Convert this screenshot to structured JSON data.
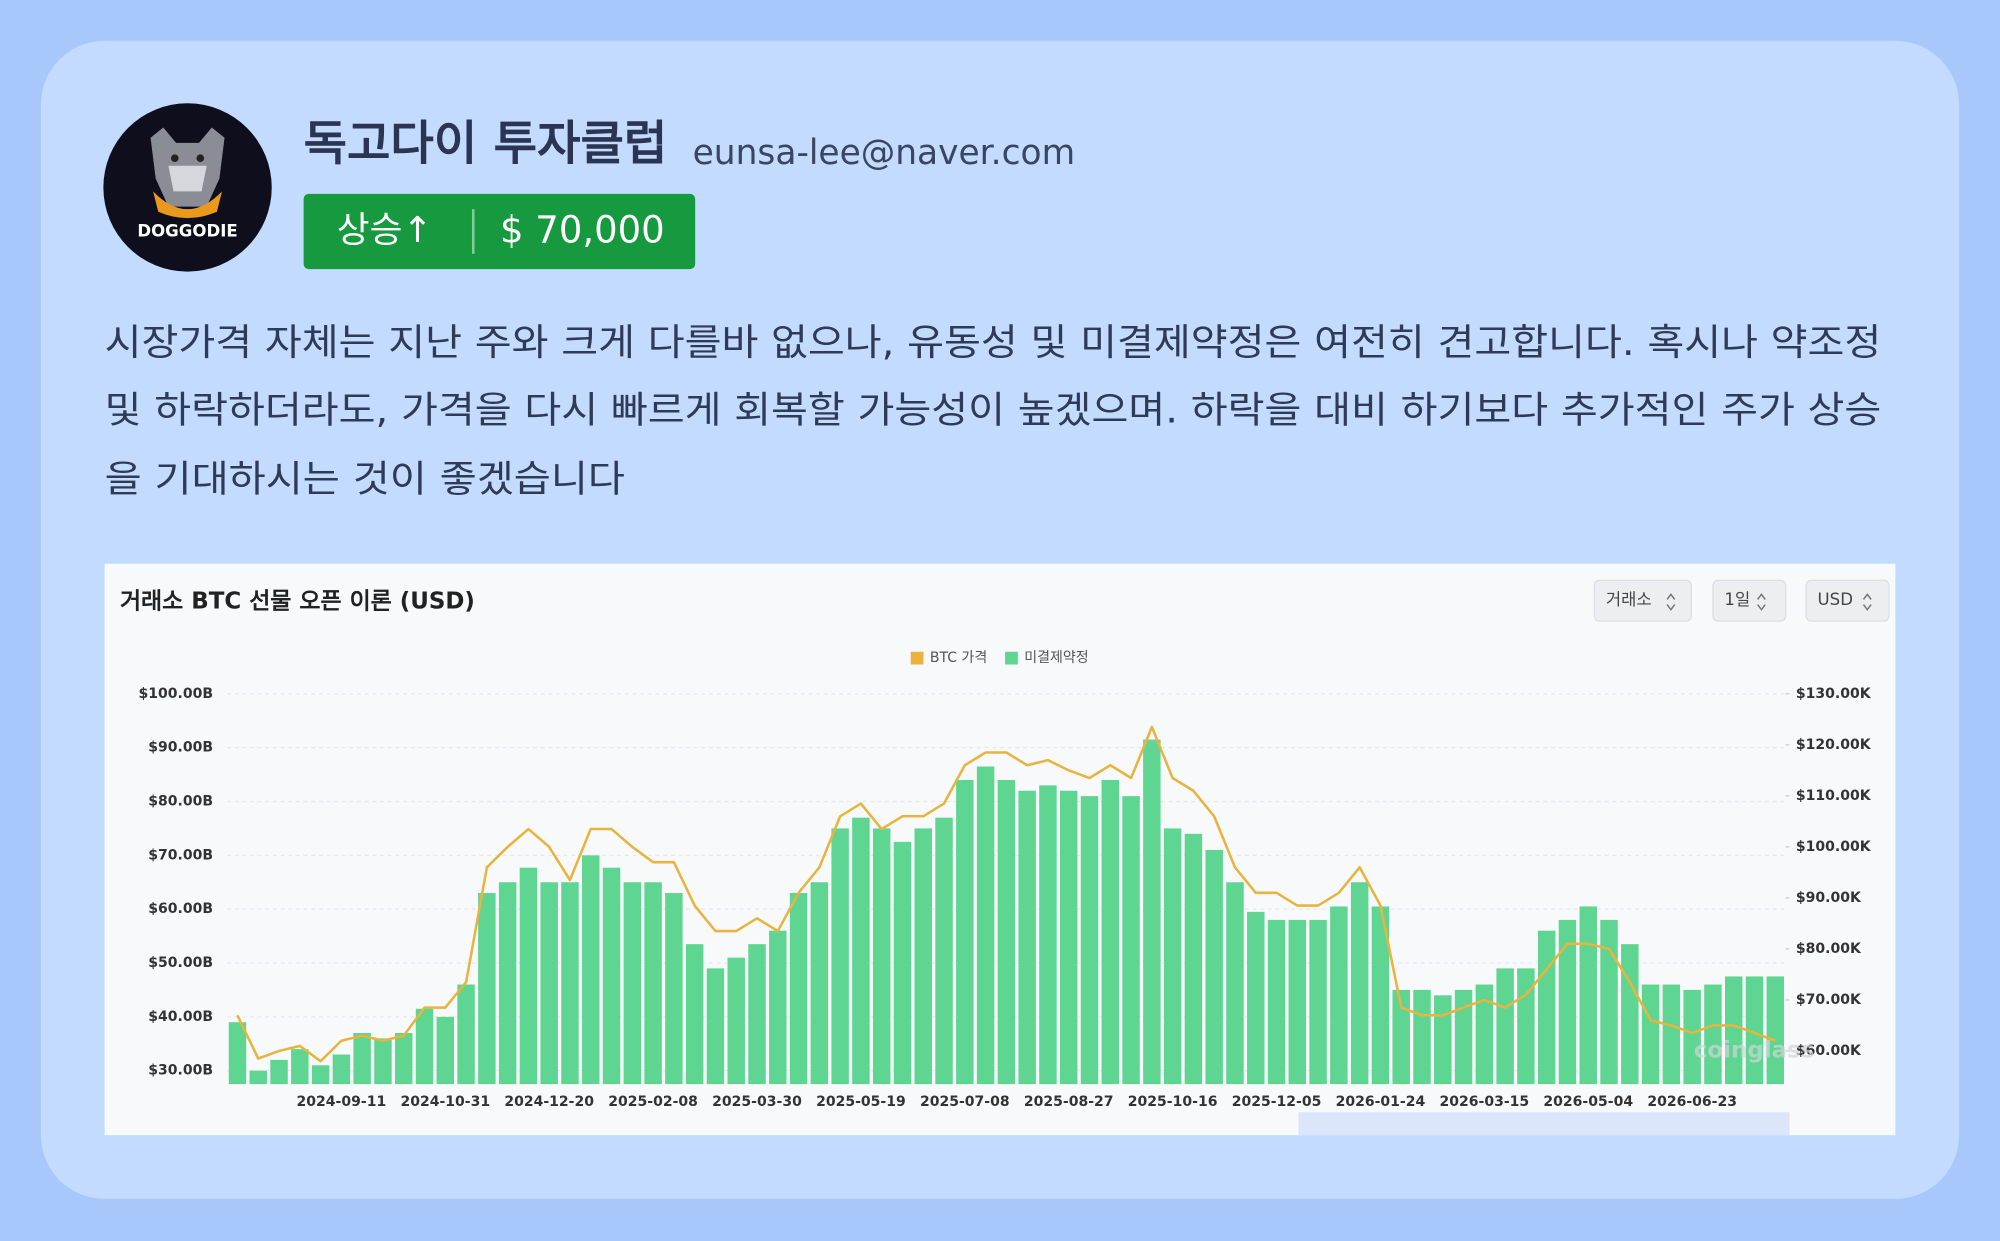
{
  "header": {
    "name": "독고다이 투자클럽",
    "email": "eunsa-lee@naver.com",
    "avatar_label": "DOGGODIE"
  },
  "badge": {
    "direction": "상승↑",
    "price": "$ 70,000"
  },
  "body": {
    "lines": [
      "시장가격 자체는 지난 주와 크게 다를바 없으나, 유동성 및 미결제약정은 여전히 견고합니다. 혹시나 약조정",
      "및 하락하더라도, 가격을 다시 빠르게 회복할 가능성이 높겠으며. 하락을 대비 하기보다 추가적인 주가 상승",
      "을 기대하시는 것이 좋겠습니다"
    ]
  },
  "controls": [
    "거래소",
    "1일",
    "USD"
  ],
  "watermark": "coinglass",
  "chart_data": {
    "type": "combo",
    "title": "거래소 BTC 선물 오픈 이론 (USD)",
    "grid": true,
    "legend": "top",
    "x": [
      null,
      null,
      null,
      null,
      null,
      "2024-09-11",
      null,
      null,
      null,
      null,
      "2024-10-31",
      null,
      null,
      null,
      null,
      "2024-12-20",
      null,
      null,
      null,
      null,
      "2025-02-08",
      null,
      null,
      null,
      null,
      "2025-03-30",
      null,
      null,
      null,
      null,
      "2025-05-19",
      null,
      null,
      null,
      null,
      "2025-07-08",
      null,
      null,
      null,
      null,
      "2025-08-27",
      null,
      null,
      null,
      null,
      "2025-10-16",
      null,
      null,
      null,
      null,
      "2025-12-05",
      null,
      null,
      null,
      null,
      "2026-01-24",
      null,
      null,
      null,
      null,
      "2026-03-15",
      null,
      null,
      null,
      null,
      "2026-05-04",
      null,
      null,
      null,
      null,
      "2026-06-23",
      null,
      null,
      null,
      null
    ],
    "series": [
      {
        "name": "BTC 가격",
        "type": "line",
        "axis": "y2",
        "color": "#e8b440",
        "values": [
          67,
          58.5,
          60,
          61,
          58,
          62,
          63,
          62,
          63,
          68.5,
          68.5,
          73.5,
          96,
          100,
          103.5,
          100,
          93.5,
          103.5,
          103.5,
          100,
          97,
          97,
          88.5,
          83.5,
          83.5,
          86,
          83.5,
          91,
          96,
          106,
          108.5,
          103.5,
          106,
          106,
          108.5,
          116,
          118.5,
          118.5,
          116,
          117,
          115,
          113.5,
          116,
          113.5,
          123.5,
          113.5,
          111,
          106,
          96,
          91,
          91,
          88.5,
          88.5,
          91,
          96,
          88.5,
          68.5,
          67,
          67,
          68.5,
          70,
          68.5,
          71,
          76,
          81,
          81,
          80,
          73.5,
          66,
          65,
          63.5,
          65,
          65,
          63.5,
          62
        ]
      },
      {
        "name": "미결제약정",
        "type": "bar",
        "axis": "y",
        "color": "#5fd592",
        "values": [
          39,
          30,
          32,
          34,
          31,
          33,
          37,
          36,
          37,
          41.5,
          40,
          46,
          63,
          65,
          67.7,
          65,
          65,
          70,
          67.7,
          65,
          65,
          63,
          53.5,
          49,
          51,
          53.5,
          56,
          63,
          65,
          75,
          77,
          75,
          72.5,
          75,
          77,
          84,
          86.5,
          84,
          82,
          83,
          82,
          81,
          84,
          81,
          91.5,
          75,
          74,
          71,
          65,
          59.5,
          58,
          58,
          58,
          60.5,
          65,
          60.5,
          45,
          45,
          44,
          45,
          46,
          49,
          49,
          56,
          58,
          60.5,
          58,
          53.5,
          46,
          46,
          45,
          46,
          47.5,
          47.5,
          47.5
        ]
      }
    ],
    "ylim": [
      27.5,
      100
    ],
    "yticks": [
      {
        "value": 30,
        "label": "$30.00B"
      },
      {
        "value": 40,
        "label": "$40.00B"
      },
      {
        "value": 50,
        "label": "$50.00B"
      },
      {
        "value": 60,
        "label": "$60.00B"
      },
      {
        "value": 70,
        "label": "$70.00B"
      },
      {
        "value": 80,
        "label": "$80.00B"
      },
      {
        "value": 90,
        "label": "$90.00B"
      },
      {
        "value": 100,
        "label": "$100.00B"
      }
    ],
    "y2lim": [
      53.5,
      130
    ],
    "y2ticks": [
      {
        "value": 60,
        "label": "$60.00K"
      },
      {
        "value": 70,
        "label": "$70.00K"
      },
      {
        "value": 80,
        "label": "$80.00K"
      },
      {
        "value": 90,
        "label": "$90.00K"
      },
      {
        "value": 100,
        "label": "$100.00K"
      },
      {
        "value": 110,
        "label": "$110.00K"
      },
      {
        "value": 120,
        "label": "$120.00K"
      },
      {
        "value": 130,
        "label": "$130.00K"
      }
    ]
  }
}
